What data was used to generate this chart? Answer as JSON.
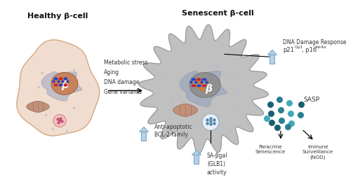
{
  "title_left": "Healthy β-cell",
  "title_right": "Senescent β-cell",
  "bg_color": "#ffffff",
  "stress_labels": [
    "Metabolic stress",
    "Aging",
    "DNA damage",
    "Gene variants"
  ],
  "label_ddr": "DNA Damage Response",
  "label_p21": "p21",
  "label_p21_sup": "Cip1",
  "label_p16": ", p16",
  "label_p16_sup": "ink4a",
  "label_antiapop": "Anti-apoptotic\nBCL-2 family",
  "label_sabgal": "SA-βgal\n(GLB1)\nactivity",
  "label_sasp": "SASP",
  "label_paracrine": "Paracrine\nSenescence",
  "label_immune": "Immune\nSurveillance\n(NOD)",
  "cell_healthy_fill": "#f0ddd0",
  "cell_healthy_edge": "#d4a882",
  "nucleus_healthy_fill": "#c8825a",
  "er_fill": "#8899bb",
  "cell_senescent_fill": "#c0c0c0",
  "cell_senescent_edge": "#999999",
  "nucleus_senescent_fill": "#909090",
  "arrow_up_fill": "#b8d0e8",
  "arrow_up_edge": "#7aaac8",
  "sasp_dark": "#1a6070",
  "sasp_mid": "#2a8090",
  "sasp_light": "#40aabb",
  "vesicle_fill": "#e8f0f8",
  "mito_fill": "#c09078",
  "mito_edge": "#a07060",
  "granule_fill": "#f5c0c0",
  "granule_edge": "#d08080",
  "granule_dot": "#c05070"
}
